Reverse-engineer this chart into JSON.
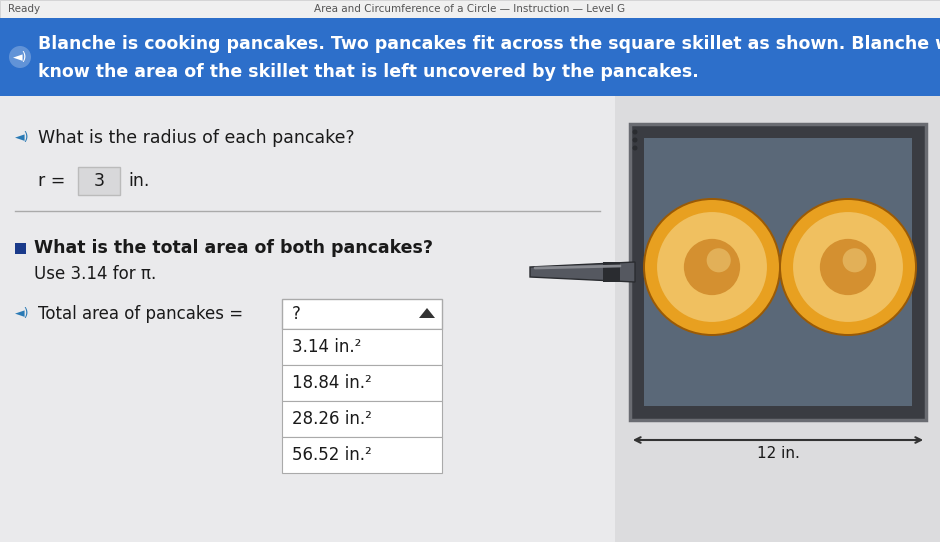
{
  "title_bar_text": "Area and Circumference of a Circle — Instruction — Level G",
  "ready_text": "Ready",
  "header_line1": "Blanche is cooking pancakes. Two pancakes fit across the square skillet as shown. Blanche wants to",
  "header_line2": "know the area of the skillet that is left uncovered by the pancakes.",
  "header_bg_color": "#2d6fca",
  "header_text_color": "#ffffff",
  "bg_color": "#d8d8da",
  "content_bg_color": "#e8e8ea",
  "q1_text": "What is the radius of each pancake?",
  "r_label": "r =",
  "r_value": "3",
  "r_unit": "in.",
  "q2_bullet_color": "#1a3a8a",
  "q2_text": "What is the total area of both pancakes?",
  "q2_sub": "Use 3.14 for π.",
  "q3_text": "Total area of pancakes =",
  "dropdown_label": "?",
  "choices": [
    "3.14 in.²",
    "18.84 in.²",
    "28.26 in.²",
    "56.52 in.²"
  ],
  "skillet_outer_color": "#3a3c42",
  "skillet_border_color": "#6a6c72",
  "skillet_inner_color": "#5a6878",
  "pancake_outer_color": "#c8780a",
  "pancake_mid_color": "#e8a020",
  "pancake_light_color": "#f0c060",
  "pancake_center_color": "#d49030",
  "handle_color": "#555860",
  "handle_dark_color": "#2a2c30",
  "handle_band_color": "#888a90",
  "ruler_text": "12 in.",
  "title_bar_bg": "#f0f0f0",
  "title_bar_text_color": "#555555",
  "divider_color": "#aaaaaa",
  "speaker_color": "#2a7ab5",
  "dropdown_border": "#aaaaaa",
  "white": "#ffffff"
}
